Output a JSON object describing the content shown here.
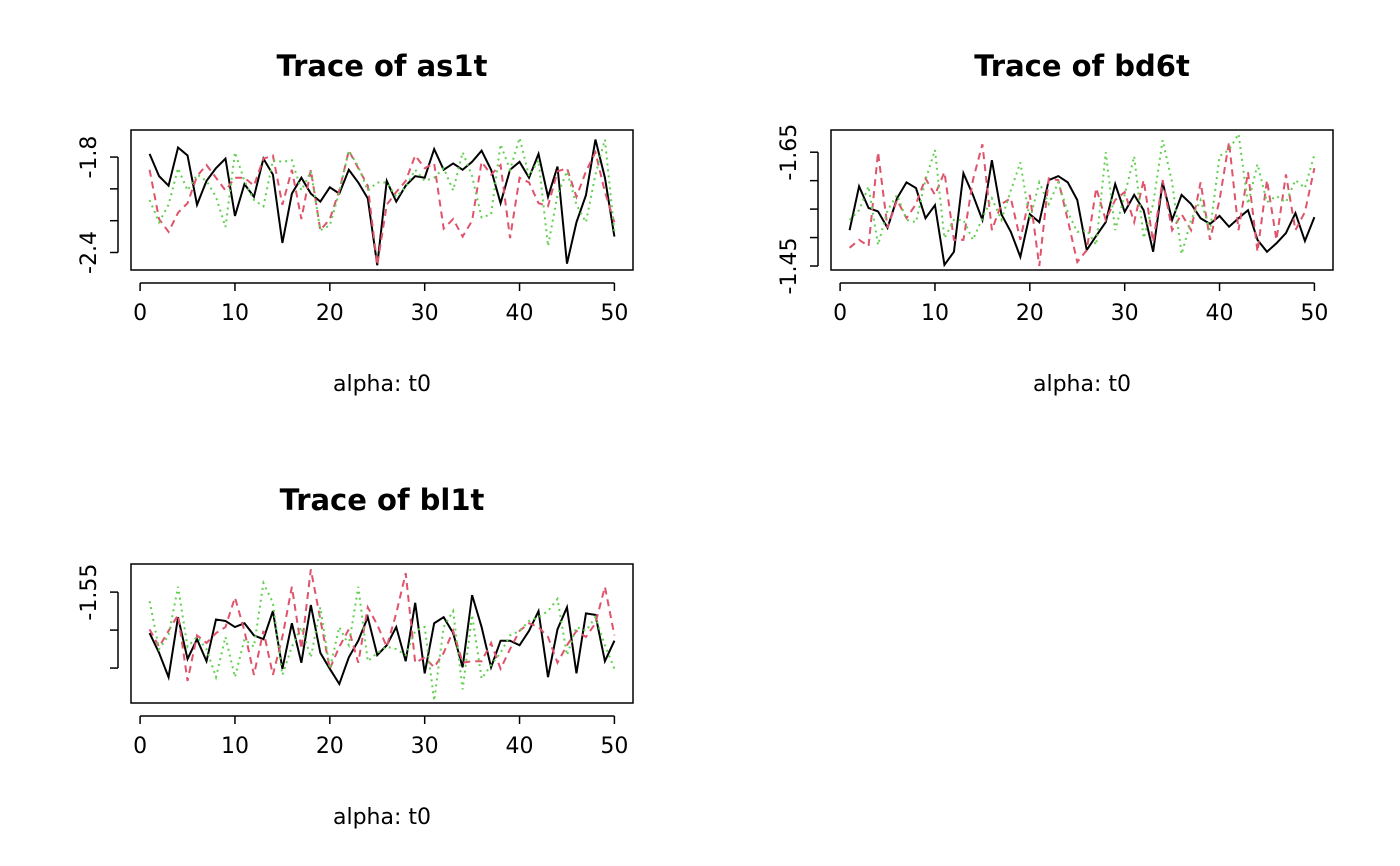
{
  "chart_data": [
    {
      "type": "line",
      "title": "Trace of as1t",
      "x_label": "alpha: t0",
      "x": [
        1,
        2,
        3,
        4,
        5,
        6,
        7,
        8,
        9,
        10,
        11,
        12,
        13,
        14,
        15,
        16,
        17,
        18,
        19,
        20,
        21,
        22,
        23,
        24,
        25,
        26,
        27,
        28,
        29,
        30,
        31,
        32,
        33,
        34,
        35,
        36,
        37,
        38,
        39,
        40,
        41,
        42,
        43,
        44,
        45,
        46,
        47,
        48,
        49,
        50
      ],
      "xlim": [
        -0.96,
        51.96
      ],
      "xticks": [
        0,
        10,
        20,
        30,
        40,
        50
      ],
      "ylim": [
        -2.51,
        -1.63
      ],
      "yticks": [
        -1.8,
        {
          "value": -2.0,
          "label": null
        },
        {
          "value": -2.2,
          "label": null
        },
        -2.4
      ],
      "series": [
        {
          "color": "#000000",
          "dash": "solid",
          "values": [
            -1.78,
            -1.92,
            -1.98,
            -1.74,
            -1.79,
            -2.1,
            -1.95,
            -1.87,
            -1.81,
            -2.17,
            -1.97,
            -2.05,
            -1.81,
            -1.91,
            -2.34,
            -2.03,
            -1.93,
            -2.03,
            -2.08,
            -1.99,
            -2.03,
            -1.88,
            -1.96,
            -2.06,
            -2.48,
            -1.95,
            -2.08,
            -1.98,
            -1.92,
            -1.93,
            -1.75,
            -1.88,
            -1.84,
            -1.88,
            -1.83,
            -1.76,
            -1.88,
            -2.09,
            -1.88,
            -1.83,
            -1.93,
            -1.78,
            -2.05,
            -1.86,
            -2.47,
            -2.21,
            -2.04,
            -1.69,
            -1.93,
            -2.3
          ]
        },
        {
          "color": "#df536b",
          "dash": "dashed",
          "values": [
            -1.88,
            -2.19,
            -2.27,
            -2.15,
            -2.09,
            -1.92,
            -1.85,
            -1.93,
            -2.01,
            -1.93,
            -1.93,
            -1.98,
            -1.81,
            -1.79,
            -2.1,
            -1.88,
            -2.19,
            -1.88,
            -2.26,
            -2.19,
            -2.01,
            -1.76,
            -1.87,
            -1.98,
            -2.48,
            -2.1,
            -2.02,
            -1.95,
            -1.79,
            -1.87,
            -1.84,
            -2.25,
            -2.19,
            -2.3,
            -2.2,
            -1.83,
            -1.91,
            -1.85,
            -2.31,
            -1.93,
            -1.96,
            -2.09,
            -2.11,
            -1.89,
            -1.87,
            -2.05,
            -1.89,
            -1.77,
            -2.02,
            -2.21
          ]
        },
        {
          "color": "#61d04f",
          "dash": "dotted",
          "values": [
            -2.07,
            -2.21,
            -2.1,
            -1.87,
            -2.01,
            -1.91,
            -1.95,
            -2.05,
            -2.24,
            -1.77,
            -1.95,
            -2.07,
            -2.11,
            -1.82,
            -1.83,
            -1.82,
            -2.01,
            -1.89,
            -2.26,
            -2.23,
            -2.02,
            -1.76,
            -1.86,
            -2.01,
            -1.96,
            -1.96,
            -2.05,
            -1.99,
            -1.88,
            -1.95,
            -1.93,
            -1.87,
            -2.01,
            -1.77,
            -1.92,
            -2.18,
            -2.16,
            -1.72,
            -1.88,
            -1.68,
            -1.92,
            -1.82,
            -2.36,
            -2.04,
            -1.89,
            -2.1,
            -2.21,
            -1.91,
            -1.69,
            -2.27
          ]
        }
      ]
    },
    {
      "type": "line",
      "title": "Trace of bd6t",
      "x_label": "alpha: t0",
      "x": [
        1,
        2,
        3,
        4,
        5,
        6,
        7,
        8,
        9,
        10,
        11,
        12,
        13,
        14,
        15,
        16,
        17,
        18,
        19,
        20,
        21,
        22,
        23,
        24,
        25,
        26,
        27,
        28,
        29,
        30,
        31,
        32,
        33,
        34,
        35,
        36,
        37,
        38,
        39,
        40,
        41,
        42,
        43,
        44,
        45,
        46,
        47,
        48,
        49,
        50
      ],
      "xlim": [
        -0.96,
        51.96
      ],
      "xticks": [
        0,
        10,
        20,
        30,
        40,
        50
      ],
      "ylim": [
        -1.443,
        -1.689
      ],
      "yticks": [
        -1.45,
        {
          "value": -1.5,
          "label": null
        },
        {
          "value": -1.55,
          "label": null
        },
        {
          "value": -1.6,
          "label": null
        },
        -1.65
      ],
      "series": [
        {
          "color": "#000000",
          "dash": "solid",
          "values": [
            -1.513,
            -1.59,
            -1.552,
            -1.546,
            -1.517,
            -1.569,
            -1.597,
            -1.587,
            -1.534,
            -1.557,
            -1.452,
            -1.475,
            -1.613,
            -1.575,
            -1.531,
            -1.636,
            -1.541,
            -1.51,
            -1.466,
            -1.541,
            -1.527,
            -1.601,
            -1.608,
            -1.597,
            -1.566,
            -1.478,
            -1.503,
            -1.527,
            -1.594,
            -1.545,
            -1.575,
            -1.548,
            -1.475,
            -1.597,
            -1.531,
            -1.575,
            -1.559,
            -1.534,
            -1.524,
            -1.538,
            -1.519,
            -1.534,
            -1.548,
            -1.496,
            -1.475,
            -1.49,
            -1.508,
            -1.543,
            -1.494,
            -1.536
          ]
        },
        {
          "color": "#df536b",
          "dash": "dashed",
          "values": [
            -1.482,
            -1.496,
            -1.485,
            -1.65,
            -1.517,
            -1.566,
            -1.534,
            -1.559,
            -1.604,
            -1.575,
            -1.615,
            -1.496,
            -1.496,
            -1.601,
            -1.664,
            -1.513,
            -1.559,
            -1.569,
            -1.496,
            -1.575,
            -1.45,
            -1.604,
            -1.601,
            -1.531,
            -1.457,
            -1.478,
            -1.587,
            -1.531,
            -1.566,
            -1.58,
            -1.527,
            -1.601,
            -1.492,
            -1.601,
            -1.513,
            -1.541,
            -1.513,
            -1.597,
            -1.496,
            -1.566,
            -1.668,
            -1.513,
            -1.615,
            -1.475,
            -1.601,
            -1.496,
            -1.611,
            -1.513,
            -1.545,
            -1.622
          ]
        },
        {
          "color": "#61d04f",
          "dash": "dotted",
          "values": [
            -1.531,
            -1.548,
            -1.59,
            -1.487,
            -1.548,
            -1.575,
            -1.531,
            -1.527,
            -1.601,
            -1.654,
            -1.499,
            -1.531,
            -1.531,
            -1.496,
            -1.534,
            -1.569,
            -1.531,
            -1.583,
            -1.632,
            -1.531,
            -1.597,
            -1.559,
            -1.597,
            -1.545,
            -1.51,
            -1.513,
            -1.487,
            -1.65,
            -1.513,
            -1.575,
            -1.643,
            -1.499,
            -1.559,
            -1.671,
            -1.597,
            -1.471,
            -1.531,
            -1.566,
            -1.513,
            -1.643,
            -1.654,
            -1.682,
            -1.559,
            -1.629,
            -1.562,
            -1.573,
            -1.562,
            -1.601,
            -1.587,
            -1.646
          ]
        }
      ]
    },
    {
      "type": "line",
      "title": "Trace of bl1t",
      "x_label": "alpha: t0",
      "x": [
        1,
        2,
        3,
        4,
        5,
        6,
        7,
        8,
        9,
        10,
        11,
        12,
        13,
        14,
        15,
        16,
        17,
        18,
        19,
        20,
        21,
        22,
        23,
        24,
        25,
        26,
        27,
        28,
        29,
        30,
        31,
        32,
        33,
        34,
        35,
        36,
        37,
        38,
        39,
        40,
        41,
        42,
        43,
        44,
        45,
        46,
        47,
        48,
        49,
        50
      ],
      "xlim": [
        -0.96,
        51.96
      ],
      "xticks": [
        0,
        10,
        20,
        30,
        40,
        50
      ],
      "ylim": [
        -1.404,
        -1.587
      ],
      "yticks": [
        {
          "value": -1.45,
          "label": null
        },
        {
          "value": -1.5,
          "label": null
        },
        -1.55
      ],
      "series": [
        {
          "color": "#000000",
          "dash": "solid",
          "values": [
            -1.496,
            -1.47,
            -1.438,
            -1.517,
            -1.462,
            -1.488,
            -1.459,
            -1.514,
            -1.512,
            -1.504,
            -1.509,
            -1.493,
            -1.488,
            -1.525,
            -1.449,
            -1.509,
            -1.457,
            -1.533,
            -1.47,
            -1.449,
            -1.429,
            -1.464,
            -1.486,
            -1.517,
            -1.467,
            -1.48,
            -1.504,
            -1.459,
            -1.536,
            -1.443,
            -1.509,
            -1.517,
            -1.496,
            -1.451,
            -1.546,
            -1.504,
            -1.451,
            -1.486,
            -1.486,
            -1.48,
            -1.499,
            -1.525,
            -1.438,
            -1.501,
            -1.53,
            -1.443,
            -1.522,
            -1.52,
            -1.459,
            -1.486
          ]
        },
        {
          "color": "#df536b",
          "dash": "dashed",
          "values": [
            -1.501,
            -1.478,
            -1.499,
            -1.52,
            -1.433,
            -1.493,
            -1.483,
            -1.496,
            -1.504,
            -1.543,
            -1.499,
            -1.441,
            -1.499,
            -1.441,
            -1.491,
            -1.557,
            -1.475,
            -1.58,
            -1.514,
            -1.449,
            -1.478,
            -1.501,
            -1.457,
            -1.53,
            -1.507,
            -1.478,
            -1.522,
            -1.575,
            -1.457,
            -1.464,
            -1.451,
            -1.47,
            -1.499,
            -1.457,
            -1.459,
            -1.459,
            -1.483,
            -1.449,
            -1.475,
            -1.499,
            -1.509,
            -1.504,
            -1.491,
            -1.457,
            -1.48,
            -1.499,
            -1.491,
            -1.509,
            -1.557,
            -1.493
          ]
        },
        {
          "color": "#61d04f",
          "dash": "dotted",
          "values": [
            -1.538,
            -1.475,
            -1.493,
            -1.557,
            -1.478,
            -1.491,
            -1.475,
            -1.438,
            -1.491,
            -1.438,
            -1.488,
            -1.478,
            -1.562,
            -1.536,
            -1.441,
            -1.478,
            -1.504,
            -1.464,
            -1.53,
            -1.449,
            -1.504,
            -1.48,
            -1.557,
            -1.459,
            -1.47,
            -1.478,
            -1.475,
            -1.467,
            -1.499,
            -1.504,
            -1.407,
            -1.504,
            -1.525,
            -1.422,
            -1.52,
            -1.436,
            -1.454,
            -1.47,
            -1.493,
            -1.499,
            -1.512,
            -1.517,
            -1.525,
            -1.541,
            -1.467,
            -1.504,
            -1.499,
            -1.517,
            -1.48,
            -1.449
          ]
        }
      ]
    }
  ]
}
